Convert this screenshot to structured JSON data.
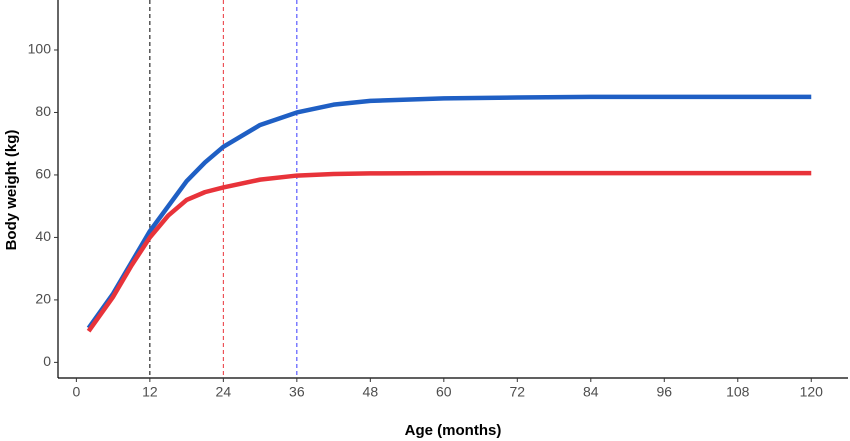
{
  "chart_data": {
    "type": "line",
    "x_label": "Age (months)",
    "y_label": "Body weight (kg)",
    "x": [
      2,
      6,
      9,
      12,
      15,
      18,
      21,
      24,
      30,
      36,
      42,
      48,
      60,
      72,
      84,
      96,
      108,
      120
    ],
    "series": [
      {
        "color": "#1f5fc4",
        "values": [
          11,
          22,
          32,
          42,
          50,
          58,
          64,
          69,
          76,
          80,
          82.5,
          83.7,
          84.5,
          84.8,
          85,
          85,
          85,
          85
        ]
      },
      {
        "color": "#e8333a",
        "values": [
          10,
          21,
          31,
          40,
          47,
          52,
          54.5,
          56,
          58.5,
          59.8,
          60.3,
          60.5,
          60.6,
          60.6,
          60.6,
          60.6,
          60.6,
          60.6
        ]
      }
    ],
    "vlines": [
      {
        "value": 12,
        "color": "#000000"
      },
      {
        "value": 24,
        "color": "#e8333a"
      },
      {
        "value": 36,
        "color": "#3a3aff"
      }
    ],
    "xlim": [
      -3,
      126
    ],
    "ylim": [
      -5,
      116
    ],
    "xticks": [
      0,
      12,
      24,
      36,
      48,
      60,
      72,
      84,
      96,
      108,
      120
    ],
    "yticks": [
      0,
      20,
      40,
      60,
      80,
      100
    ],
    "grid": false
  }
}
